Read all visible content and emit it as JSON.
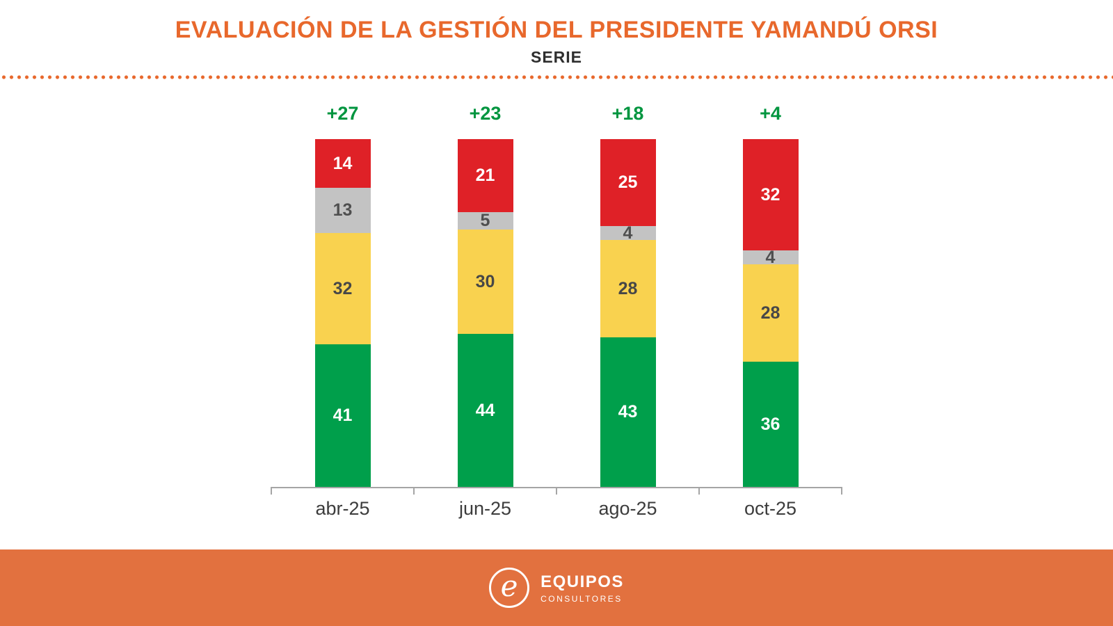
{
  "header": {
    "title": "EVALUACIÓN DE LA GESTIÓN DEL PRESIDENTE YAMANDÚ ORSI",
    "subtitle": "SERIE"
  },
  "colors": {
    "accent_orange": "#E8682C",
    "footer_orange": "#E2713F",
    "net_green": "#00953F",
    "green": "#009F4B",
    "yellow": "#F9D24F",
    "gray": "#C3C3C3",
    "red": "#DF2127",
    "axis_gray": "#A5A5A5",
    "dark_text": "#3C3C3C"
  },
  "chart_data": {
    "type": "bar",
    "stacked": true,
    "title": "EVALUACIÓN DE LA GESTIÓN DEL PRESIDENTE YAMANDÚ ORSI",
    "subtitle": "SERIE",
    "categories": [
      "abr-25",
      "jun-25",
      "ago-25",
      "oct-25"
    ],
    "series": [
      {
        "name": "green-segment",
        "color": "#009F4B",
        "label_color": "#FFFFFF",
        "values": [
          41,
          44,
          43,
          36
        ]
      },
      {
        "name": "yellow-segment",
        "color": "#F9D24F",
        "label_color": "#474747",
        "values": [
          32,
          30,
          28,
          28
        ]
      },
      {
        "name": "gray-segment",
        "color": "#C3C3C3",
        "label_color": "#4F4F4F",
        "values": [
          13,
          5,
          4,
          4
        ]
      },
      {
        "name": "red-segment",
        "color": "#DF2127",
        "label_color": "#FFFFFF",
        "values": [
          14,
          21,
          25,
          32
        ]
      }
    ],
    "net_labels": [
      "+27",
      "+23",
      "+18",
      "+4"
    ],
    "ylim": [
      0,
      100
    ],
    "legend": "none",
    "grid": false
  },
  "footer": {
    "logo_letter": "e",
    "brand_top": "EQUIPOS",
    "brand_bottom": "CONSULTORES"
  }
}
